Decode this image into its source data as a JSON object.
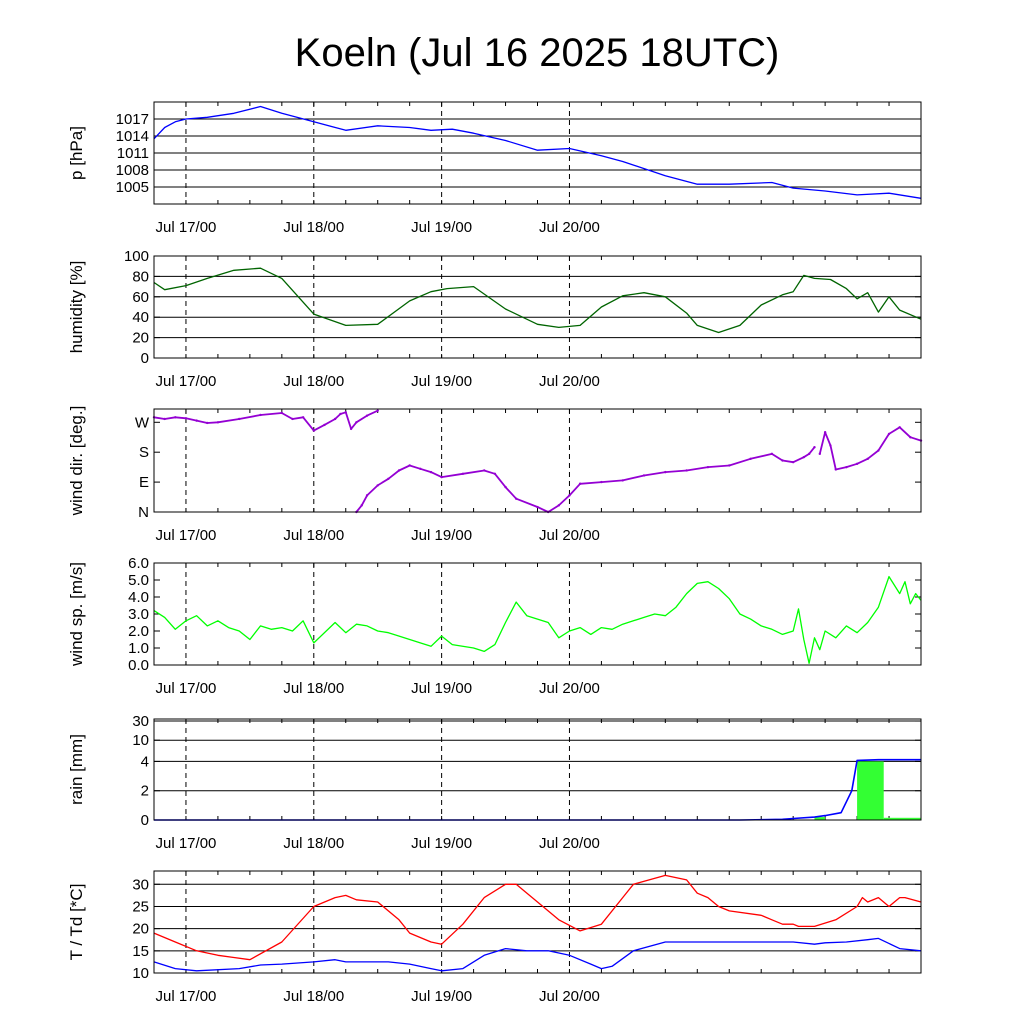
{
  "title": "Koeln (Jul 16 2025 18UTC)",
  "x_ticks": [
    "Jul 17/00",
    "Jul 18/00",
    "Jul 19/00",
    "Jul 20/00"
  ],
  "chart_data": [
    {
      "type": "line",
      "key": "pressure",
      "ylabel": "p [hPa]",
      "color": "#0000ff",
      "ylim": [
        1002,
        1020
      ],
      "yticks": [
        1005,
        1008,
        1011,
        1014,
        1017
      ],
      "ytick_labels": [
        "1005",
        "1008",
        "1011",
        "1014",
        "1017"
      ],
      "grid": true,
      "x_hours": [
        0,
        2,
        4,
        6,
        10,
        15,
        20,
        24,
        30,
        36,
        42,
        48,
        52,
        56,
        60,
        66,
        72,
        78,
        84,
        88,
        96,
        102,
        108,
        116,
        120,
        126,
        132,
        138,
        144
      ],
      "values": [
        1013.5,
        1015.5,
        1016.5,
        1017,
        1017.3,
        1018,
        1019.2,
        1018,
        1016.5,
        1015,
        1015.8,
        1015.5,
        1015,
        1015.2,
        1014.5,
        1013.2,
        1011.5,
        1011.8,
        1010.5,
        1009.5,
        1007,
        1005.5,
        1005.5,
        1005.8,
        1004.8,
        1004.3,
        1003.6,
        1003.9,
        1003
      ]
    },
    {
      "type": "line",
      "key": "humidity",
      "ylabel": "humidity [%]",
      "color": "#006400",
      "ylim": [
        0,
        100
      ],
      "yticks": [
        0,
        20,
        40,
        60,
        80,
        100
      ],
      "ytick_labels": [
        "0",
        "20",
        "40",
        "60",
        "80",
        "100"
      ],
      "grid": true,
      "x_hours": [
        0,
        2,
        6,
        10,
        15,
        20,
        24,
        30,
        36,
        42,
        48,
        52,
        55,
        60,
        66,
        72,
        76,
        80,
        84,
        88,
        92,
        96,
        100,
        102,
        106,
        110,
        114,
        118,
        120,
        122,
        124,
        127,
        130,
        132,
        134,
        136,
        138,
        140,
        144
      ],
      "values": [
        74,
        67,
        71,
        78,
        86,
        88,
        78,
        43,
        32,
        33,
        56,
        65,
        68,
        70,
        48,
        33,
        30,
        32,
        50,
        61,
        64,
        60,
        44,
        32,
        25,
        32,
        52,
        62,
        65,
        81,
        78,
        77,
        68,
        58,
        64,
        45,
        60,
        47,
        38
      ]
    },
    {
      "type": "scatter",
      "key": "wind_direction",
      "ylabel": "wind dir. [deg.]",
      "color": "#9400d3",
      "ylim": [
        0,
        310
      ],
      "yticks": [
        0,
        90,
        180,
        270
      ],
      "ytick_labels": [
        "N",
        "E",
        "S",
        "W"
      ],
      "grid": false,
      "segments": [
        {
          "x_hours": [
            0,
            2,
            4,
            6,
            8,
            10,
            12,
            16,
            20,
            24,
            26,
            28,
            30,
            32,
            34,
            35,
            36,
            37,
            38,
            40,
            42
          ],
          "values": [
            285,
            280,
            285,
            282,
            275,
            268,
            270,
            280,
            292,
            298,
            280,
            285,
            245,
            262,
            280,
            295,
            300,
            250,
            270,
            290,
            305
          ]
        },
        {
          "x_hours": [
            38,
            39,
            40,
            42,
            44,
            46,
            48,
            50,
            52,
            54,
            58,
            62,
            64,
            66,
            68,
            72,
            74,
            76,
            78,
            80,
            84,
            88,
            92,
            96,
            100,
            104,
            108,
            112,
            116,
            118,
            120,
            122,
            123,
            124
          ],
          "values": [
            0,
            20,
            50,
            80,
            100,
            125,
            140,
            130,
            120,
            105,
            115,
            125,
            115,
            75,
            40,
            15,
            0,
            20,
            50,
            85,
            90,
            95,
            110,
            120,
            125,
            135,
            140,
            160,
            175,
            155,
            150,
            165,
            175,
            195
          ]
        },
        {
          "x_hours": [
            125,
            126,
            127,
            128,
            130,
            132,
            134,
            136,
            138,
            140,
            142,
            144
          ],
          "values": [
            175,
            240,
            200,
            128,
            135,
            145,
            160,
            185,
            235,
            255,
            225,
            215
          ]
        }
      ]
    },
    {
      "type": "line",
      "key": "wind_speed",
      "ylabel": "wind sp. [m/s]",
      "color": "#00ff00",
      "ylim": [
        0,
        6
      ],
      "yticks": [
        0,
        1,
        2,
        3,
        4,
        5,
        6
      ],
      "ytick_labels": [
        "0.0",
        "1.0",
        "2.0",
        "3.0",
        "4.0",
        "5.0",
        "6.0"
      ],
      "grid": false,
      "x_hours": [
        0,
        2,
        4,
        6,
        8,
        10,
        12,
        14,
        16,
        18,
        20,
        22,
        24,
        26,
        28,
        30,
        34,
        36,
        38,
        40,
        42,
        44,
        48,
        50,
        52,
        54,
        56,
        60,
        62,
        64,
        66,
        68,
        70,
        72,
        74,
        76,
        78,
        80,
        82,
        84,
        86,
        88,
        90,
        92,
        94,
        96,
        98,
        100,
        102,
        104,
        106,
        108,
        110,
        112,
        114,
        116,
        118,
        120,
        121,
        122,
        123,
        124,
        125,
        126,
        128,
        130,
        132,
        134,
        136,
        138,
        140,
        141,
        142,
        143,
        144
      ],
      "values": [
        3.2,
        2.8,
        2.1,
        2.6,
        2.9,
        2.3,
        2.6,
        2.2,
        2.0,
        1.5,
        2.3,
        2.1,
        2.2,
        2.0,
        2.6,
        1.3,
        2.5,
        1.9,
        2.4,
        2.3,
        2.0,
        1.9,
        1.5,
        1.3,
        1.1,
        1.7,
        1.2,
        1.0,
        0.8,
        1.2,
        2.5,
        3.7,
        2.9,
        2.7,
        2.5,
        1.6,
        2.0,
        2.2,
        1.8,
        2.2,
        2.1,
        2.4,
        2.6,
        2.8,
        3.0,
        2.9,
        3.4,
        4.2,
        4.8,
        4.9,
        4.5,
        3.9,
        3.0,
        2.7,
        2.3,
        2.1,
        1.8,
        2.0,
        3.3,
        1.5,
        0.1,
        1.6,
        0.9,
        2.0,
        1.6,
        2.3,
        1.9,
        2.5,
        3.4,
        5.2,
        4.2,
        4.9,
        3.6,
        4.2,
        3.8
      ]
    },
    {
      "type": "bar",
      "key": "rain",
      "ylabel": "rain [mm]",
      "color": "#33ff33",
      "line_color": "#0000ff",
      "ylim": [
        0,
        30
      ],
      "yticks": [
        0,
        2,
        4,
        10,
        30
      ],
      "ytick_labels": [
        "0",
        "2",
        "4",
        "10",
        "30"
      ],
      "grid": true,
      "scale": "nonlinear (ticks 0,2,4,10,30 roughly evenly spaced)",
      "bars": [
        {
          "x_hours": [
            124,
            126
          ],
          "value": 0.2
        },
        {
          "x_hours": [
            132,
            137
          ],
          "value": 4.0
        },
        {
          "x_hours": [
            137,
            144
          ],
          "value": 0.15
        }
      ],
      "cumulative": {
        "x_hours": [
          0,
          110,
          118,
          120,
          124,
          126,
          129,
          131,
          132,
          136,
          144
        ],
        "values": [
          0,
          0,
          0.05,
          0.1,
          0.2,
          0.3,
          0.5,
          2.0,
          4.3,
          4.5,
          4.5
        ]
      }
    },
    {
      "type": "line",
      "key": "temperature",
      "ylabel": "T / Td [*C]",
      "ylim": [
        10,
        33
      ],
      "yticks": [
        10,
        15,
        20,
        25,
        30
      ],
      "ytick_labels": [
        "10",
        "15",
        "20",
        "25",
        "30"
      ],
      "grid": true,
      "series": [
        {
          "name": "T",
          "color": "#ff0000",
          "x_hours": [
            0,
            4,
            8,
            12,
            15,
            18,
            24,
            30,
            34,
            36,
            38,
            42,
            46,
            48,
            52,
            54,
            58,
            62,
            66,
            68,
            72,
            76,
            80,
            84,
            88,
            90,
            96,
            100,
            102,
            104,
            106,
            108,
            114,
            116,
            118,
            120,
            121,
            124,
            128,
            132,
            133,
            134,
            136,
            138,
            139,
            140,
            141,
            144
          ],
          "values": [
            19,
            17,
            15,
            14,
            13.5,
            13,
            17,
            25,
            27,
            27.5,
            26.5,
            26,
            22,
            19,
            17,
            16.5,
            21,
            27,
            30,
            30,
            26,
            22,
            19.5,
            21,
            27,
            30,
            32,
            31,
            28,
            27,
            25,
            24,
            23,
            22,
            21,
            21,
            20.5,
            20.5,
            22,
            25,
            27,
            26,
            27,
            25,
            26,
            27,
            27,
            26
          ]
        },
        {
          "name": "Td",
          "color": "#0000ff",
          "x_hours": [
            0,
            4,
            8,
            16,
            20,
            24,
            30,
            34,
            36,
            40,
            44,
            48,
            52,
            54,
            58,
            62,
            66,
            70,
            74,
            78,
            82,
            84,
            86,
            90,
            96,
            100,
            106,
            114,
            120,
            124,
            126,
            130,
            134,
            136,
            140,
            144
          ],
          "values": [
            12.5,
            11,
            10.5,
            11,
            11.8,
            12,
            12.5,
            13,
            12.5,
            12.5,
            12.5,
            12,
            11,
            10.5,
            11,
            14,
            15.5,
            15,
            15,
            14,
            12,
            11,
            11.5,
            15,
            17,
            17,
            17,
            17,
            17,
            16.5,
            16.8,
            17,
            17.5,
            17.8,
            15.5,
            15
          ]
        }
      ]
    }
  ]
}
